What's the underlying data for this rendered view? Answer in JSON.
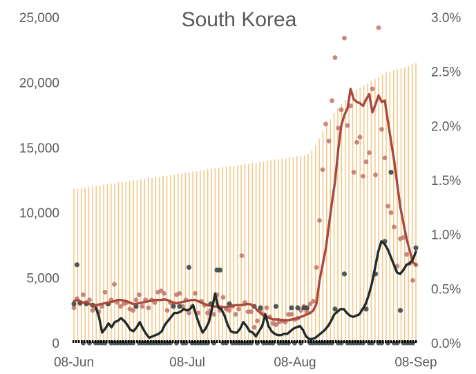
{
  "chart_data": {
    "type": "bar",
    "title": "South Korea",
    "xlabel": "",
    "ylabel": "",
    "x_range": [
      "2020-06-08",
      "2020-09-08"
    ],
    "x_ticks": [
      "08-Jun",
      "08-Jul",
      "08-Aug",
      "08-Sep"
    ],
    "y_left": {
      "range": [
        0,
        25000
      ],
      "ticks": [
        "0",
        "5,000",
        "10,000",
        "15,000",
        "20,000",
        "25,000"
      ]
    },
    "y_right": {
      "range": [
        0,
        0.03
      ],
      "ticks": [
        "0.0%",
        "0.5%",
        "1.0%",
        "1.5%",
        "2.0%",
        "2.5%",
        "3.0%"
      ]
    },
    "grid": false,
    "legend": "none",
    "colors": {
      "bars": "#f2c98a",
      "dots_red": "#c0736a",
      "line_red": "#a9483d",
      "dots_dark": "#3c4a48",
      "line_dark": "#1f2b2a",
      "baseline": "#000000"
    },
    "series": [
      {
        "axis": "right",
        "style": "bars",
        "values": [
          0.0142,
          0.0142,
          0.0143,
          0.0143,
          0.0144,
          0.0144,
          0.0145,
          0.0145,
          0.0146,
          0.0146,
          0.0147,
          0.0147,
          0.0148,
          0.0148,
          0.0149,
          0.0149,
          0.015,
          0.015,
          0.0151,
          0.0151,
          0.0152,
          0.0152,
          0.0153,
          0.0153,
          0.0154,
          0.0154,
          0.0155,
          0.0155,
          0.0156,
          0.0156,
          0.0157,
          0.0157,
          0.0158,
          0.0158,
          0.0159,
          0.0159,
          0.016,
          0.016,
          0.0161,
          0.0161,
          0.0162,
          0.0162,
          0.0163,
          0.0163,
          0.0164,
          0.0164,
          0.0165,
          0.0165,
          0.0166,
          0.0166,
          0.0167,
          0.0167,
          0.0168,
          0.0168,
          0.0169,
          0.0169,
          0.017,
          0.017,
          0.0171,
          0.0171,
          0.0172,
          0.0172,
          0.0173,
          0.0174,
          0.0177,
          0.0182,
          0.0188,
          0.0195,
          0.02,
          0.0206,
          0.0212,
          0.0216,
          0.022,
          0.0224,
          0.0227,
          0.023,
          0.0233,
          0.0235,
          0.0237,
          0.0239,
          0.0241,
          0.0243,
          0.0245,
          0.0247,
          0.0249,
          0.025,
          0.0251,
          0.0252,
          0.0253,
          0.0254,
          0.0255,
          0.0257,
          0.0258
        ]
      },
      {
        "axis": "left",
        "style": "dots",
        "values": [
          2700,
          3400,
          3000,
          3700,
          3100,
          3300,
          2500,
          2700,
          2400,
          2800,
          3900,
          3000,
          3300,
          4500,
          3100,
          2800,
          3000,
          3100,
          2600,
          2500,
          3300,
          3700,
          2800,
          3300,
          2700,
          3300,
          3100,
          3900,
          4000,
          3800,
          2500,
          3100,
          3000,
          3700,
          3800,
          2800,
          3300,
          2300,
          2800,
          3800,
          2300,
          3200,
          2900,
          2300,
          2500,
          2200,
          3700,
          2500,
          3500,
          2600,
          2500,
          2800,
          2200,
          2600,
          6700,
          3100,
          2400,
          2400,
          1200,
          1700,
          2500,
          2200,
          2700,
          2000,
          1500,
          1400,
          1600,
          1700,
          1600,
          2200,
          2200,
          1800,
          1900,
          2500,
          2800,
          2400,
          3000,
          3200,
          5800,
          9400,
          13300,
          16800,
          15500,
          18600,
          21900,
          16500,
          17900,
          23400,
          16700,
          18200,
          13100,
          15400,
          15800,
          12800,
          13900,
          14600,
          19500,
          12900,
          24200,
          16400,
          14200,
          10500,
          10000,
          8900,
          5900,
          8000,
          8100,
          6800,
          6100,
          4800,
          6000
        ]
      },
      {
        "axis": "left",
        "style": "line",
        "values": [
          3200,
          3300,
          3200,
          3100,
          3150,
          3000,
          2900,
          2900,
          2950,
          3000,
          3050,
          3100,
          3150,
          3200,
          3300,
          3300,
          3250,
          3200,
          3100,
          3000,
          3000,
          3050,
          3100,
          3150,
          3200,
          3250,
          3300,
          3300,
          3300,
          3350,
          3300,
          3200,
          3100,
          3050,
          3100,
          3150,
          3200,
          3250,
          3300,
          3300,
          3200,
          3100,
          3000,
          2900,
          2850,
          2800,
          2800,
          2800,
          2750,
          2750,
          2800,
          2850,
          2900,
          2900,
          2900,
          2950,
          3000,
          2950,
          2800,
          2500,
          2300,
          2100,
          2000,
          1900,
          1800,
          1800,
          1800,
          1750,
          1750,
          1750,
          1800,
          1850,
          1900,
          2000,
          2100,
          2200,
          2300,
          2500,
          3000,
          4800,
          6000,
          7200,
          9000,
          10800,
          12400,
          14800,
          16700,
          17500,
          18000,
          19500,
          18700,
          18500,
          18400,
          18200,
          18700,
          19100,
          17700,
          18300,
          19000,
          18500,
          18600,
          17000,
          15500,
          14000,
          12200,
          10400,
          9200,
          8000,
          7100,
          6200,
          6000
        ]
      },
      {
        "axis": "left",
        "style": "dots",
        "values": [
          3000,
          6000,
          3100,
          0,
          3000,
          0,
          2900,
          0,
          0,
          0,
          0,
          3000,
          0,
          0,
          0,
          0,
          0,
          0,
          0,
          0,
          2800,
          0,
          0,
          0,
          0,
          0,
          0,
          0,
          0,
          0,
          0,
          0,
          2800,
          0,
          2800,
          0,
          0,
          5800,
          0,
          0,
          0,
          0,
          0,
          0,
          3000,
          0,
          5600,
          5600,
          0,
          0,
          3000,
          0,
          0,
          0,
          0,
          0,
          0,
          0,
          2800,
          0,
          2700,
          0,
          0,
          0,
          0,
          2800,
          0,
          0,
          0,
          0,
          2700,
          0,
          2700,
          0,
          2700,
          2700,
          0,
          0,
          0,
          0,
          0,
          0,
          0,
          0,
          2600,
          0,
          0,
          5300,
          0,
          0,
          0,
          0,
          0,
          0,
          2600,
          0,
          0,
          5300,
          0,
          0,
          7800,
          0,
          13100,
          0,
          0,
          2500,
          0,
          0,
          0,
          0,
          7300
        ]
      },
      {
        "axis": "left",
        "style": "line",
        "values": [
          null,
          null,
          null,
          null,
          null,
          null,
          null,
          2700,
          2000,
          800,
          1100,
          1500,
          1200,
          1600,
          1700,
          1900,
          1700,
          1400,
          1000,
          900,
          1200,
          1600,
          1100,
          700,
          400,
          500,
          600,
          700,
          900,
          1400,
          1700,
          2000,
          2300,
          2300,
          2400,
          2600,
          2500,
          2600,
          2900,
          2100,
          1400,
          800,
          1100,
          1600,
          2600,
          3800,
          2700,
          2600,
          2100,
          1400,
          900,
          800,
          800,
          1100,
          1600,
          1300,
          900,
          800,
          500,
          900,
          1300,
          2200,
          1300,
          900,
          700,
          600,
          600,
          700,
          700,
          900,
          1100,
          1200,
          1300,
          1000,
          500,
          300,
          300,
          400,
          600,
          800,
          1000,
          1300,
          1700,
          2200,
          2400,
          2600,
          2600,
          2300,
          2100,
          2000,
          2100,
          2200,
          2600,
          3000,
          3700,
          4600,
          5800,
          7000,
          7800,
          7600,
          7200,
          6600,
          6000,
          5400,
          5300,
          5600,
          6000,
          6100,
          6400,
          7000
        ]
      }
    ]
  }
}
